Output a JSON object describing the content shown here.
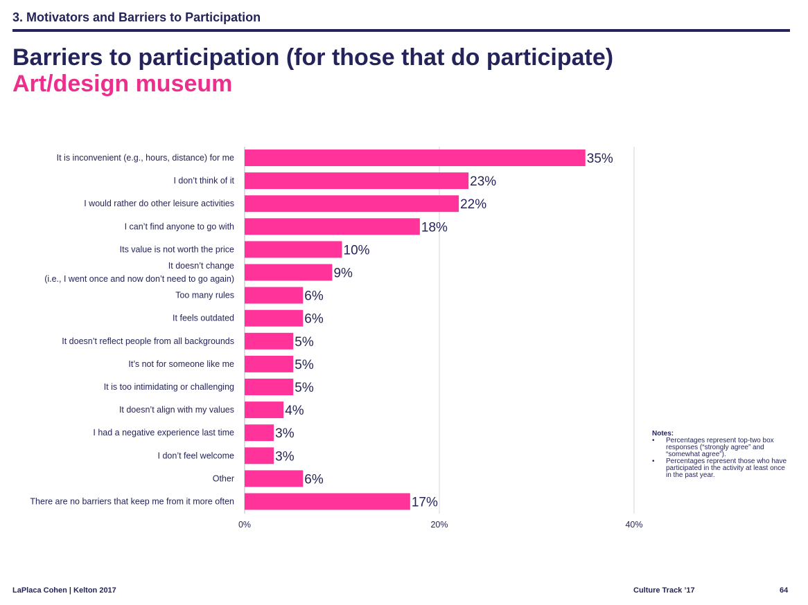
{
  "header": {
    "section": "3. Motivators and Barriers to Participation",
    "title": "Barriers to participation (for those that do participate)",
    "subtitle": "Art/design museum"
  },
  "chart_data": {
    "type": "bar",
    "orientation": "horizontal",
    "categories": [
      "It is inconvenient (e.g., hours, distance) for me",
      "I don’t think of it",
      "I would rather do other leisure activities",
      "I can’t find anyone to go with",
      "Its value is not worth the price",
      "It doesn’t change\n(i.e., I went once and now don’t need to go again)",
      "Too many rules",
      "It feels outdated",
      "It doesn’t reflect people from all backgrounds",
      "It’s not for someone like me",
      "It is too intimidating or challenging",
      "It doesn’t align with my values",
      "I had a negative experience last time",
      "I don’t feel welcome",
      "Other",
      "There are no barriers that keep me from it more often"
    ],
    "values": [
      35,
      23,
      22,
      18,
      10,
      9,
      6,
      6,
      5,
      5,
      5,
      4,
      3,
      3,
      6,
      17
    ],
    "value_labels": [
      "35%",
      "23%",
      "22%",
      "18%",
      "10%",
      "9%",
      "6%",
      "6%",
      "5%",
      "5%",
      "5%",
      "4%",
      "3%",
      "3%",
      "6%",
      "17%"
    ],
    "xlim": [
      0,
      40
    ],
    "xticks": [
      0,
      20,
      40
    ],
    "xtick_labels": [
      "0%",
      "20%",
      "40%"
    ],
    "grid": true,
    "bar_color": "#ff3399",
    "text_color": "#24245a"
  },
  "notes": {
    "title": "Notes:",
    "items": [
      "Percentages represent top-two box responses (“strongly agree” and “somewhat agree”).",
      "Percentages represent those who have participated in the activity at least once in the past year."
    ]
  },
  "footer": {
    "left": "LaPlaca Cohen | Kelton 2017",
    "middle": "Culture Track ’17",
    "page": "64"
  }
}
